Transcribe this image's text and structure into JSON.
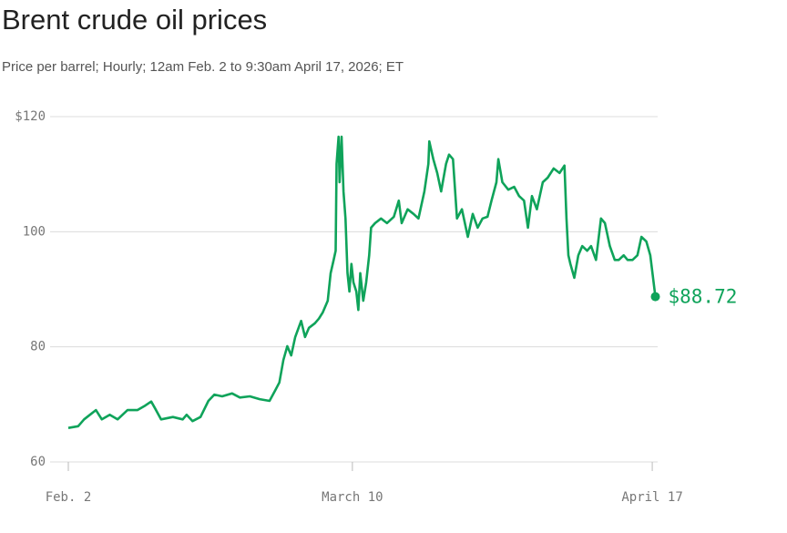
{
  "chart_data": {
    "type": "line",
    "title": "Brent crude oil prices",
    "subtitle": "Price per barrel; Hourly; 12am Feb. 2 to 9:30am April 17, 2026; ET",
    "x": [
      "2026-02-02T00:00",
      "2026-02-03T06:00",
      "2026-02-04T00:00",
      "2026-02-04T18:00",
      "2026-02-05T12:00",
      "2026-02-06T06:00",
      "2026-02-07T06:00",
      "2026-02-08T06:00",
      "2026-02-09T12:00",
      "2026-02-10T18:00",
      "2026-02-11T18:00",
      "2026-02-12T12:00",
      "2026-02-13T00:00",
      "2026-02-13T18:00",
      "2026-02-15T06:00",
      "2026-02-16T12:00",
      "2026-02-17T00:00",
      "2026-02-17T18:00",
      "2026-02-18T18:00",
      "2026-02-19T18:00",
      "2026-02-20T12:00",
      "2026-02-21T12:00",
      "2026-02-22T18:00",
      "2026-02-23T18:00",
      "2026-02-25T00:00",
      "2026-02-26T06:00",
      "2026-02-27T12:00",
      "2026-02-28T06:00",
      "2026-02-28T18:00",
      "2026-03-01T06:00",
      "2026-03-01T18:00",
      "2026-03-02T06:00",
      "2026-03-02T18:00",
      "2026-03-03T12:00",
      "2026-03-04T00:00",
      "2026-03-04T12:00",
      "2026-03-05T06:00",
      "2026-03-05T18:00",
      "2026-03-06T06:00",
      "2026-03-06T21:00",
      "2026-03-07T06:00",
      "2026-03-07T15:00",
      "2026-03-07T21:00",
      "2026-03-08T00:00",
      "2026-03-08T06:00",
      "2026-03-08T09:00",
      "2026-03-08T15:00",
      "2026-03-08T21:00",
      "2026-03-09T03:00",
      "2026-03-09T09:00",
      "2026-03-09T15:00",
      "2026-03-09T21:00",
      "2026-03-10T03:00",
      "2026-03-10T12:00",
      "2026-03-10T18:00",
      "2026-03-11T00:00",
      "2026-03-11T09:00",
      "2026-03-11T18:00",
      "2026-03-12T03:00",
      "2026-03-12T09:00",
      "2026-03-12T21:00",
      "2026-03-13T15:00",
      "2026-03-14T09:00",
      "2026-03-15T06:00",
      "2026-03-15T21:00",
      "2026-03-16T06:00",
      "2026-03-17T00:00",
      "2026-03-17T18:00",
      "2026-03-18T09:00",
      "2026-03-19T03:00",
      "2026-03-19T15:00",
      "2026-03-19T18:00",
      "2026-03-20T06:00",
      "2026-03-20T18:00",
      "2026-03-21T06:00",
      "2026-03-21T21:00",
      "2026-03-22T06:00",
      "2026-03-22T18:00",
      "2026-03-23T06:00",
      "2026-03-23T21:00",
      "2026-03-24T15:00",
      "2026-03-25T06:00",
      "2026-03-25T21:00",
      "2026-03-26T12:00",
      "2026-03-27T03:00",
      "2026-03-27T15:00",
      "2026-03-28T06:00",
      "2026-03-28T12:00",
      "2026-03-29T00:00",
      "2026-03-29T18:00",
      "2026-03-30T12:00",
      "2026-03-31T03:00",
      "2026-03-31T18:00",
      "2026-04-01T06:00",
      "2026-04-01T18:00",
      "2026-04-02T09:00",
      "2026-04-03T03:00",
      "2026-04-03T18:00",
      "2026-04-04T12:00",
      "2026-04-05T06:00",
      "2026-04-05T21:00",
      "2026-04-06T03:00",
      "2026-04-06T09:00",
      "2026-04-06T15:00",
      "2026-04-07T03:00",
      "2026-04-07T15:00",
      "2026-04-08T03:00",
      "2026-04-08T18:00",
      "2026-04-09T06:00",
      "2026-04-09T21:00",
      "2026-04-10T12:00",
      "2026-04-11T00:00",
      "2026-04-11T15:00",
      "2026-04-12T06:00",
      "2026-04-12T18:00",
      "2026-04-13T09:00",
      "2026-04-13T21:00",
      "2026-04-14T12:00",
      "2026-04-15T03:00",
      "2026-04-15T15:00",
      "2026-04-16T06:00",
      "2026-04-16T18:00",
      "2026-04-17T09:30"
    ],
    "series": [
      {
        "name": "Brent crude",
        "color": "#0fa35a",
        "values": [
          65.9,
          66.2,
          67.4,
          68.2,
          69.0,
          67.4,
          68.2,
          67.4,
          69.0,
          69.0,
          69.8,
          70.5,
          69.3,
          67.4,
          67.8,
          67.4,
          68.2,
          67.1,
          67.8,
          70.6,
          71.7,
          71.4,
          71.9,
          71.2,
          71.4,
          70.9,
          70.6,
          72.5,
          73.8,
          77.7,
          80.1,
          78.5,
          81.7,
          84.5,
          81.7,
          83.3,
          84.1,
          84.9,
          86.0,
          88.0,
          92.8,
          95.1,
          96.7,
          111.8,
          116.5,
          108.6,
          116.5,
          107.0,
          102.3,
          92.8,
          89.6,
          94.4,
          91.2,
          89.6,
          86.4,
          92.8,
          88.0,
          91.2,
          95.9,
          100.7,
          101.5,
          102.3,
          101.5,
          102.6,
          105.4,
          101.5,
          103.9,
          103.1,
          102.3,
          107.0,
          111.8,
          115.7,
          112.6,
          110.2,
          107.0,
          111.8,
          113.4,
          112.6,
          102.3,
          103.9,
          99.1,
          103.1,
          100.7,
          102.3,
          102.6,
          105.4,
          108.6,
          112.6,
          108.6,
          107.3,
          107.8,
          106.2,
          105.4,
          100.7,
          106.2,
          103.9,
          108.6,
          109.4,
          111.0,
          110.2,
          111.5,
          102.3,
          95.9,
          94.4,
          92.0,
          95.9,
          97.5,
          96.7,
          97.5,
          95.1,
          102.3,
          101.5,
          97.5,
          95.1,
          95.1,
          95.9,
          95.1,
          95.1,
          95.9,
          99.1,
          98.3,
          95.9,
          88.72
        ],
        "value_labels": [
          null,
          null,
          null,
          null,
          null,
          null,
          null,
          null,
          null,
          null,
          null,
          null,
          null,
          null,
          null,
          null,
          null,
          null,
          null,
          null,
          null,
          null,
          null,
          null,
          null,
          null,
          null,
          null,
          null,
          null,
          null,
          null,
          null,
          null,
          null,
          null,
          null,
          null,
          null,
          null,
          null,
          null,
          null,
          null,
          null,
          null,
          null,
          null,
          null,
          null,
          null,
          null,
          null,
          null,
          null,
          null,
          null,
          null,
          null,
          null,
          null,
          null,
          null,
          null,
          null,
          null,
          null,
          null,
          null,
          null,
          null,
          null,
          null,
          null,
          null,
          null,
          null,
          null,
          null,
          null,
          null,
          null,
          null,
          null,
          null,
          null,
          null,
          null,
          null,
          null,
          null,
          null,
          null,
          null,
          null,
          null,
          null,
          null,
          null,
          null,
          null,
          null,
          null,
          null,
          null,
          null,
          null,
          null,
          null,
          null,
          null,
          null,
          null,
          null,
          null,
          null,
          null,
          null,
          null,
          null,
          null,
          null,
          "$88.72"
        ]
      }
    ],
    "xlim": [
      "2026-02-02T00:00",
      "2026-04-17T09:30"
    ],
    "xticks": [
      {
        "value": "2026-02-02T00:00",
        "label": "Feb. 2"
      },
      {
        "value": "2026-03-10T00:00",
        "label": "March 10"
      },
      {
        "value": "2026-04-17T00:00",
        "label": "April 17"
      }
    ],
    "ylim": [
      60,
      120
    ],
    "yticks": [
      {
        "value": 120,
        "label": "$120"
      },
      100,
      80,
      60
    ],
    "grid": true
  }
}
